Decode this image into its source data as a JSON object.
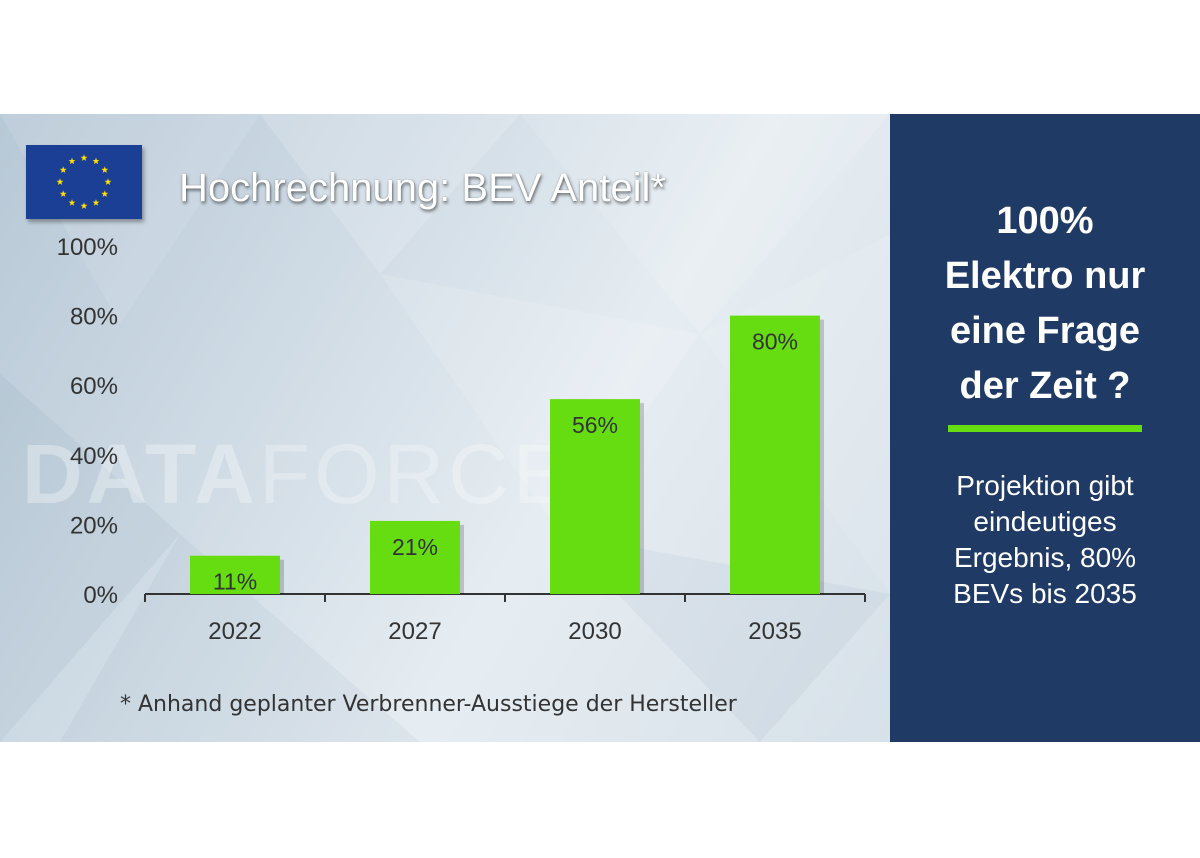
{
  "chart_data": {
    "type": "bar",
    "title": "Hochrechnung: BEV Anteil*",
    "categories": [
      "2022",
      "2027",
      "2030",
      "2035"
    ],
    "values": [
      11,
      21,
      56,
      80
    ],
    "value_labels": [
      "11%",
      "21%",
      "56%",
      "80%"
    ],
    "yticks": [
      "0%",
      "20%",
      "40%",
      "60%",
      "80%",
      "100%"
    ],
    "ylim": [
      0,
      100
    ],
    "grid": false,
    "bar_color": "#66dd11"
  },
  "footnote": "* Anhand geplanter Verbrenner-Ausstiege der Hersteller",
  "watermark": {
    "bold": "DATA",
    "light": "FORCE"
  },
  "side_panel": {
    "headline_lines": [
      "100%",
      "Elektro nur",
      "eine Frage",
      "der Zeit ?"
    ],
    "body_lines": [
      "Projektion gibt",
      "eindeutiges",
      "Ergebnis, 80%",
      "BEVs bis 2035"
    ],
    "background": "#203a66",
    "accent": "#66dd11"
  },
  "flag": {
    "icon": "eu-flag-icon",
    "background": "#1b3f94",
    "stars": "#ffdd00"
  }
}
